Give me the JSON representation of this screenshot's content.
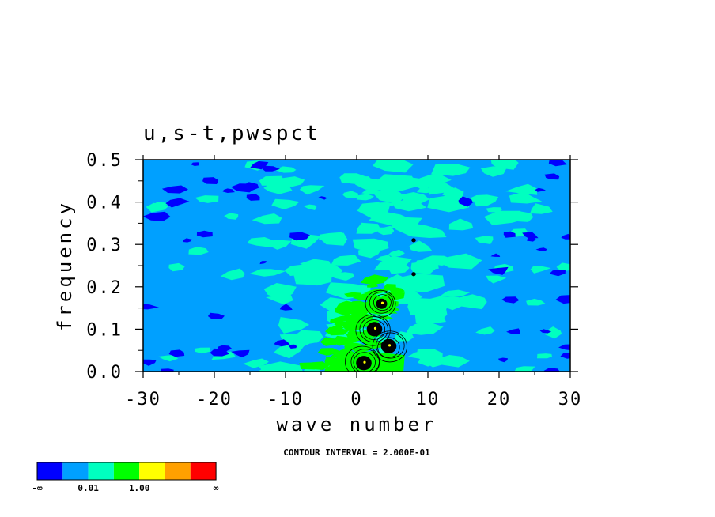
{
  "chart_data": {
    "type": "heatmap",
    "title": "u,s-t,pwspct",
    "xlabel": "wave number",
    "ylabel": "frequency",
    "xlim": [
      -30,
      30
    ],
    "ylim": [
      0.0,
      0.5
    ],
    "xticks": [
      "-30",
      "-20",
      "-10",
      "0",
      "10",
      "20",
      "30"
    ],
    "xtick_values": [
      -30,
      -20,
      -10,
      0,
      10,
      20,
      30
    ],
    "yticks": [
      "0.0",
      "0.1",
      "0.2",
      "0.3",
      "0.4",
      "0.5"
    ],
    "ytick_values": [
      0.0,
      0.1,
      0.2,
      0.3,
      0.4,
      0.5
    ],
    "contour_note": "CONTOUR INTERVAL = 2.000E-01",
    "colorbar": {
      "colors": [
        "#0000ff",
        "#00a0ff",
        "#00ffc0",
        "#00ff00",
        "#ffff00",
        "#ffa000",
        "#ff0000"
      ],
      "labels": [
        "-∞",
        "0.01",
        "1.00",
        "∞"
      ]
    },
    "features": [
      {
        "type": "peak",
        "x": 2.5,
        "y": 0.1,
        "level": "high"
      },
      {
        "type": "peak",
        "x": 1.0,
        "y": 0.02,
        "level": "high"
      },
      {
        "type": "peak",
        "x": 4.5,
        "y": 0.06,
        "level": "high"
      },
      {
        "type": "peak",
        "x": 3.5,
        "y": 0.16,
        "level": "medium"
      },
      {
        "type": "peak",
        "x": 8.0,
        "y": 0.31,
        "level": "low"
      },
      {
        "type": "peak",
        "x": 8.0,
        "y": 0.23,
        "level": "low"
      }
    ],
    "grid": false,
    "legend": "bottom-left"
  }
}
